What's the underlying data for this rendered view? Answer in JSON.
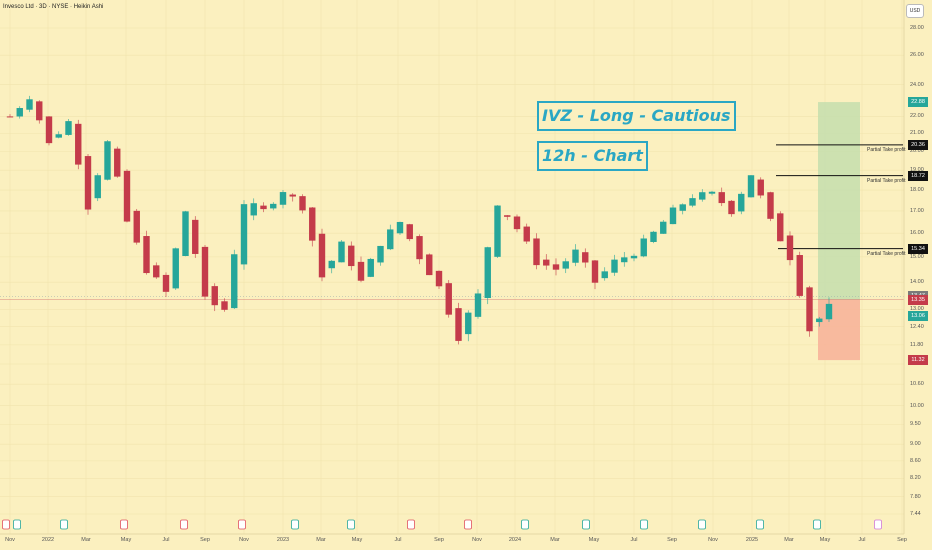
{
  "header": {
    "title": "Invesco Ltd · 3D · NYSE · Heikin Ashi",
    "currency_button": "USD"
  },
  "annotations": {
    "line1": "IVZ - Long - Cautious",
    "line2": "12h - Chart"
  },
  "colors": {
    "background": "#fbf0bf",
    "up": "#26a69a",
    "down": "#c43b4a",
    "target_zone": "#c8dfae",
    "stop_zone": "#f7b49a",
    "accent": "#2aa7c4"
  },
  "price_tags": [
    {
      "name": "target",
      "value": "22.88",
      "color": "#26a69a"
    },
    {
      "name": "tp1",
      "value": "20.36",
      "color": "#111111"
    },
    {
      "name": "tp2",
      "value": "18.72",
      "color": "#111111"
    },
    {
      "name": "tp3",
      "value": "15.34",
      "color": "#111111"
    },
    {
      "name": "prev-close",
      "value": "13.47",
      "color": "#7a7a7a"
    },
    {
      "name": "entry",
      "value": "13.35",
      "color": "#c43b4a"
    },
    {
      "name": "last-price",
      "value": "13.06",
      "color": "#26a69a"
    },
    {
      "name": "stop",
      "value": "11.32",
      "color": "#c43b4a"
    }
  ],
  "take_profit_labels": [
    "Partial Take profit",
    "Partial Take profit",
    "Partial Take profit"
  ],
  "chart_data": {
    "type": "candlestick",
    "title": "Invesco Ltd · 3D · NYSE · Heikin Ashi",
    "y_scale": "log",
    "ylim": [
      7.44,
      28.0
    ],
    "y_ticks": [
      "28.00",
      "26.00",
      "24.00",
      "22.00",
      "21.00",
      "20.00",
      "19.00",
      "18.00",
      "17.00",
      "16.00",
      "15.00",
      "14.00",
      "13.00",
      "12.40",
      "11.80",
      "11.20",
      "10.60",
      "10.00",
      "9.50",
      "9.00",
      "8.60",
      "8.20",
      "7.80",
      "7.44"
    ],
    "x_ticks": [
      "Nov",
      "2022",
      "Mar",
      "May",
      "Jul",
      "Sep",
      "Nov",
      "2023",
      "Mar",
      "May",
      "Jul",
      "Sep",
      "Nov",
      "2024",
      "Mar",
      "May",
      "Jul",
      "Sep",
      "Nov",
      "2025",
      "Mar",
      "May",
      "Jul",
      "Sep"
    ],
    "price_path": [
      {
        "date": "2021-11",
        "value": 22.0
      },
      {
        "date": "2021-12",
        "value": 23.2
      },
      {
        "date": "2022-01",
        "value": 20.4
      },
      {
        "date": "2022-02",
        "value": 21.7
      },
      {
        "date": "2022-03",
        "value": 17.2
      },
      {
        "date": "2022-04",
        "value": 20.5
      },
      {
        "date": "2022-05",
        "value": 16.5
      },
      {
        "date": "2022-06",
        "value": 14.5
      },
      {
        "date": "2022-07",
        "value": 13.6
      },
      {
        "date": "2022-08",
        "value": 17.0
      },
      {
        "date": "2022-09",
        "value": 13.3
      },
      {
        "date": "2022-10",
        "value": 13.0
      },
      {
        "date": "2022-11",
        "value": 17.4
      },
      {
        "date": "2022-12",
        "value": 17.0
      },
      {
        "date": "2023-01",
        "value": 18.0
      },
      {
        "date": "2023-02",
        "value": 17.2
      },
      {
        "date": "2023-03",
        "value": 14.2
      },
      {
        "date": "2023-04",
        "value": 15.5
      },
      {
        "date": "2023-05",
        "value": 14.0
      },
      {
        "date": "2023-06",
        "value": 15.6
      },
      {
        "date": "2023-07",
        "value": 16.5
      },
      {
        "date": "2023-08",
        "value": 15.0
      },
      {
        "date": "2023-09",
        "value": 13.8
      },
      {
        "date": "2023-10",
        "value": 12.1
      },
      {
        "date": "2023-11",
        "value": 13.5
      },
      {
        "date": "2023-12",
        "value": 17.4
      },
      {
        "date": "2024-01",
        "value": 16.2
      },
      {
        "date": "2024-02",
        "value": 14.8
      },
      {
        "date": "2024-03",
        "value": 14.5
      },
      {
        "date": "2024-04",
        "value": 15.2
      },
      {
        "date": "2024-05",
        "value": 14.0
      },
      {
        "date": "2024-06",
        "value": 14.8
      },
      {
        "date": "2024-07",
        "value": 15.2
      },
      {
        "date": "2024-08",
        "value": 16.0
      },
      {
        "date": "2024-09",
        "value": 17.0
      },
      {
        "date": "2024-10",
        "value": 17.7
      },
      {
        "date": "2024-11",
        "value": 17.8
      },
      {
        "date": "2024-12",
        "value": 17.0
      },
      {
        "date": "2025-01",
        "value": 18.8
      },
      {
        "date": "2025-02",
        "value": 16.5
      },
      {
        "date": "2025-03",
        "value": 15.0
      },
      {
        "date": "2025-04",
        "value": 12.3
      },
      {
        "date": "2025-05",
        "value": 13.06
      }
    ],
    "levels": {
      "target": 22.88,
      "tp1": 20.36,
      "tp2": 18.72,
      "tp3": 15.34,
      "entry": 13.35,
      "stop": 11.32
    }
  }
}
